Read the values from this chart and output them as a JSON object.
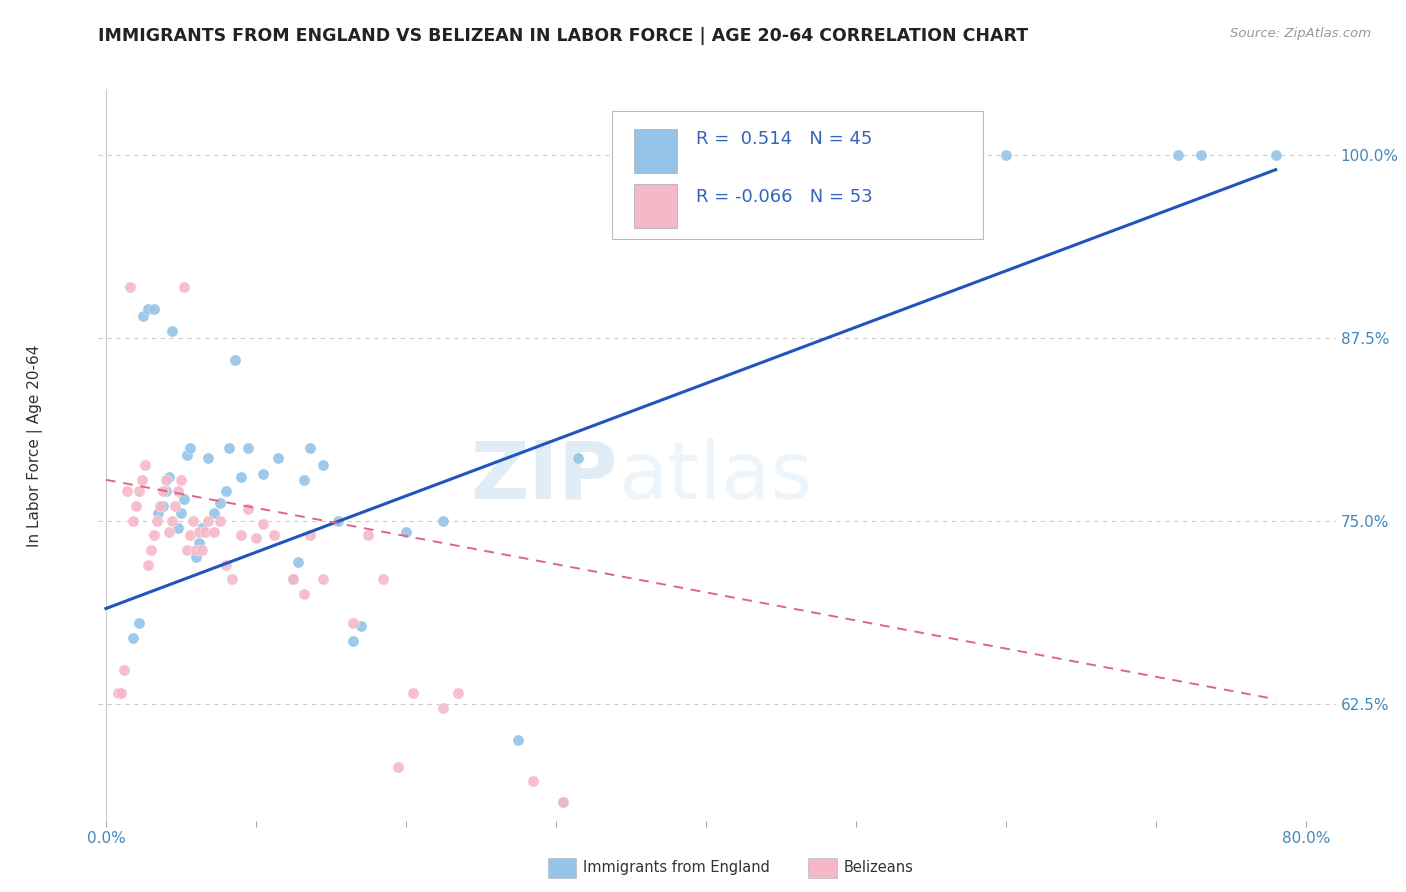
{
  "title": "IMMIGRANTS FROM ENGLAND VS BELIZEAN IN LABOR FORCE | AGE 20-64 CORRELATION CHART",
  "source": "Source: ZipAtlas.com",
  "ylabel": "In Labor Force | Age 20-64",
  "xlim": [
    -0.005,
    0.82
  ],
  "ylim": [
    0.545,
    1.045
  ],
  "xticks": [
    0.0,
    0.1,
    0.2,
    0.3,
    0.4,
    0.5,
    0.6,
    0.7,
    0.8
  ],
  "xticklabels": [
    "0.0%",
    "",
    "",
    "",
    "",
    "",
    "",
    "",
    "80.0%"
  ],
  "ytick_positions": [
    0.625,
    0.75,
    0.875,
    1.0
  ],
  "yticklabels": [
    "62.5%",
    "75.0%",
    "87.5%",
    "100.0%"
  ],
  "blue_color": "#94c4e8",
  "pink_color": "#f5b8c8",
  "blue_line_color": "#2255bb",
  "pink_line_color": "#dd6688",
  "watermark_zip": "ZIP",
  "watermark_atlas": "atlas",
  "legend_R_blue": " 0.514",
  "legend_N_blue": "45",
  "legend_R_pink": "-0.066",
  "legend_N_pink": "53",
  "blue_scatter_x": [
    0.018,
    0.022,
    0.025,
    0.028,
    0.032,
    0.035,
    0.038,
    0.04,
    0.042,
    0.044,
    0.048,
    0.05,
    0.052,
    0.054,
    0.056,
    0.06,
    0.062,
    0.064,
    0.068,
    0.072,
    0.076,
    0.08,
    0.082,
    0.086,
    0.09,
    0.095,
    0.105,
    0.115,
    0.125,
    0.128,
    0.132,
    0.136,
    0.145,
    0.155,
    0.165,
    0.17,
    0.2,
    0.225,
    0.275,
    0.305,
    0.315,
    0.6,
    0.715,
    0.73,
    0.78
  ],
  "blue_scatter_y": [
    0.67,
    0.68,
    0.89,
    0.895,
    0.895,
    0.755,
    0.76,
    0.77,
    0.78,
    0.88,
    0.745,
    0.755,
    0.765,
    0.795,
    0.8,
    0.725,
    0.735,
    0.745,
    0.793,
    0.755,
    0.762,
    0.77,
    0.8,
    0.86,
    0.78,
    0.8,
    0.782,
    0.793,
    0.71,
    0.722,
    0.778,
    0.8,
    0.788,
    0.75,
    0.668,
    0.678,
    0.742,
    0.75,
    0.6,
    0.558,
    0.793,
    1.0,
    1.0,
    1.0,
    1.0
  ],
  "pink_scatter_x": [
    0.008,
    0.01,
    0.012,
    0.014,
    0.016,
    0.018,
    0.02,
    0.022,
    0.024,
    0.026,
    0.028,
    0.03,
    0.032,
    0.034,
    0.036,
    0.038,
    0.04,
    0.042,
    0.044,
    0.046,
    0.048,
    0.05,
    0.052,
    0.054,
    0.056,
    0.058,
    0.06,
    0.062,
    0.064,
    0.066,
    0.068,
    0.072,
    0.076,
    0.08,
    0.084,
    0.09,
    0.095,
    0.1,
    0.105,
    0.112,
    0.125,
    0.132,
    0.136,
    0.145,
    0.165,
    0.175,
    0.185,
    0.195,
    0.205,
    0.225,
    0.235,
    0.285,
    0.305
  ],
  "pink_scatter_y": [
    0.632,
    0.632,
    0.648,
    0.77,
    0.91,
    0.75,
    0.76,
    0.77,
    0.778,
    0.788,
    0.72,
    0.73,
    0.74,
    0.75,
    0.76,
    0.77,
    0.778,
    0.742,
    0.75,
    0.76,
    0.77,
    0.778,
    0.91,
    0.73,
    0.74,
    0.75,
    0.73,
    0.742,
    0.73,
    0.742,
    0.75,
    0.742,
    0.75,
    0.72,
    0.71,
    0.74,
    0.758,
    0.738,
    0.748,
    0.74,
    0.71,
    0.7,
    0.74,
    0.71,
    0.68,
    0.74,
    0.71,
    0.582,
    0.632,
    0.622,
    0.632,
    0.572,
    0.558
  ],
  "blue_line_x0": 0.0,
  "blue_line_x1": 0.78,
  "blue_line_y0": 0.69,
  "blue_line_y1": 0.99,
  "pink_line_x0": 0.0,
  "pink_line_x1": 0.78,
  "pink_line_y0": 0.778,
  "pink_line_y1": 0.628
}
